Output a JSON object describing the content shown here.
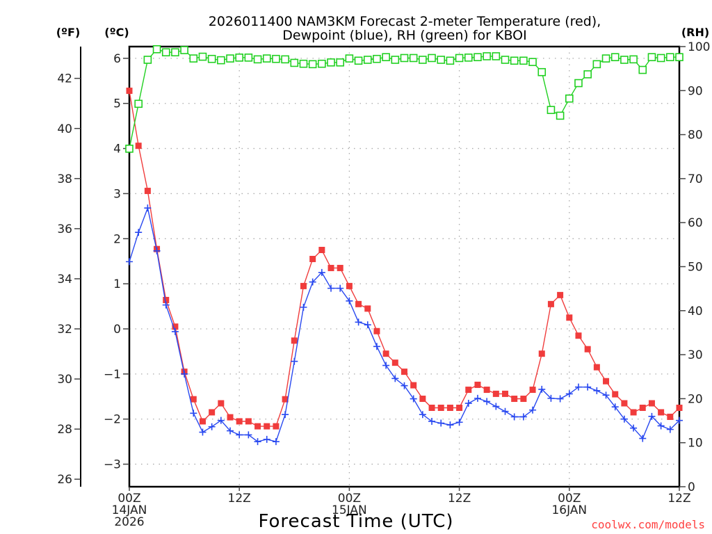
{
  "chart_data": {
    "type": "line",
    "title_lines": [
      "2026011400 NAM3KM Forecast 2-meter Temperature (red),",
      "Dewpoint (blue), RH (green) for KBOI"
    ],
    "xlabel": "Forecast Time (UTC)",
    "credit": "coolwx.com/models",
    "left_unit_f": "(ºF)",
    "left_unit_c": "(ºC)",
    "right_unit": "(RH)",
    "x_hours_range": [
      0,
      60
    ],
    "x_ticks": [
      {
        "hour": 0,
        "lines": [
          "00Z",
          "14JAN",
          "2026"
        ]
      },
      {
        "hour": 12,
        "lines": [
          "12Z"
        ]
      },
      {
        "hour": 24,
        "lines": [
          "00Z",
          "15JAN"
        ]
      },
      {
        "hour": 36,
        "lines": [
          "12Z"
        ]
      },
      {
        "hour": 48,
        "lines": [
          "00Z",
          "16JAN"
        ]
      },
      {
        "hour": 60,
        "lines": [
          "12Z"
        ]
      }
    ],
    "ylim_c": [
      -3.5,
      6.26
    ],
    "yticks_c": [
      -3,
      -2,
      -1,
      0,
      1,
      2,
      3,
      4,
      5,
      6
    ],
    "yticks_f": [
      26,
      28,
      30,
      32,
      34,
      36,
      38,
      40,
      42
    ],
    "ylim_rh": [
      0,
      100
    ],
    "yticks_rh": [
      0,
      10,
      20,
      30,
      40,
      50,
      60,
      70,
      80,
      90,
      100
    ],
    "grid": true,
    "series": [
      {
        "name": "Temperature",
        "units": "°C",
        "color": "#f03c3c",
        "marker": "filled-square",
        "axis": "celsius",
        "values": [
          5.28,
          4.06,
          3.06,
          1.77,
          0.64,
          0.05,
          -0.95,
          -1.56,
          -2.05,
          -1.85,
          -1.65,
          -1.96,
          -2.05,
          -2.05,
          -2.16,
          -2.16,
          -2.16,
          -1.56,
          -0.26,
          0.95,
          1.55,
          1.75,
          1.35,
          1.35,
          0.95,
          0.55,
          0.45,
          -0.05,
          -0.55,
          -0.75,
          -0.95,
          -1.25,
          -1.55,
          -1.75,
          -1.75,
          -1.75,
          -1.75,
          -1.35,
          -1.24,
          -1.35,
          -1.44,
          -1.44,
          -1.55,
          -1.55,
          -1.35,
          -0.55,
          0.55,
          0.75,
          0.25,
          -0.15,
          -0.45,
          -0.85,
          -1.16,
          -1.45,
          -1.65,
          -1.85,
          -1.75,
          -1.65,
          -1.85,
          -1.95,
          -1.75
        ]
      },
      {
        "name": "Dewpoint",
        "units": "°C",
        "color": "#2848f0",
        "marker": "plus",
        "axis": "celsius",
        "values": [
          1.49,
          2.14,
          2.68,
          1.73,
          0.53,
          -0.06,
          -1.0,
          -1.87,
          -2.29,
          -2.17,
          -2.03,
          -2.26,
          -2.35,
          -2.35,
          -2.5,
          -2.45,
          -2.5,
          -1.9,
          -0.72,
          0.48,
          1.04,
          1.25,
          0.9,
          0.9,
          0.62,
          0.15,
          0.09,
          -0.39,
          -0.81,
          -1.1,
          -1.26,
          -1.55,
          -1.9,
          -2.05,
          -2.09,
          -2.13,
          -2.07,
          -1.65,
          -1.54,
          -1.61,
          -1.72,
          -1.83,
          -1.95,
          -1.95,
          -1.8,
          -1.34,
          -1.54,
          -1.55,
          -1.44,
          -1.29,
          -1.29,
          -1.37,
          -1.47,
          -1.73,
          -2.0,
          -2.2,
          -2.43,
          -1.94,
          -2.15,
          -2.23,
          -2.03
        ]
      },
      {
        "name": "RH",
        "units": "%",
        "color": "#20d020",
        "marker": "open-square",
        "axis": "rh",
        "values": [
          76.8,
          87.0,
          97.0,
          99.4,
          98.7,
          98.7,
          99.2,
          97.3,
          97.7,
          97.2,
          96.9,
          97.3,
          97.5,
          97.5,
          97.1,
          97.3,
          97.2,
          97.1,
          96.3,
          96.1,
          96.0,
          96.1,
          96.4,
          96.4,
          97.3,
          96.8,
          97.0,
          97.2,
          97.6,
          97.0,
          97.4,
          97.4,
          97.0,
          97.4,
          97.0,
          96.8,
          97.4,
          97.5,
          97.6,
          97.8,
          97.8,
          97.0,
          96.8,
          96.8,
          96.5,
          94.2,
          85.6,
          84.3,
          88.2,
          91.7,
          93.7,
          96.0,
          97.3,
          97.6,
          97.0,
          97.1,
          94.7,
          97.6,
          97.4,
          97.6,
          97.6
        ]
      }
    ]
  }
}
